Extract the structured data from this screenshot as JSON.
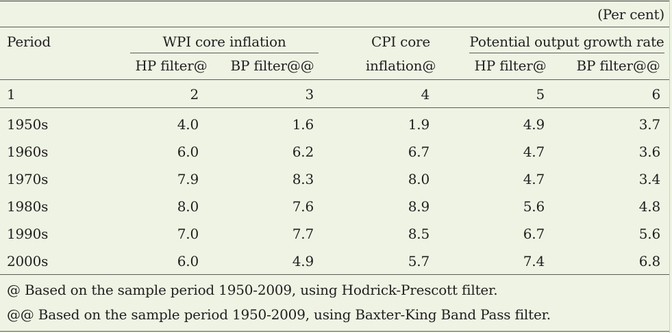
{
  "unit_note": "(Per cent)",
  "header": {
    "period": "Period",
    "wpi_group": "WPI core inflation",
    "wpi_hp": "HP filter@",
    "wpi_bp": "BP filter@@",
    "cpi_line1": "CPI core",
    "cpi_line2": "inflation@",
    "pot_group": "Potential output growth rate",
    "pot_hp": "HP filter@",
    "pot_bp": "BP filter@@"
  },
  "column_numbers": [
    "1",
    "2",
    "3",
    "4",
    "5",
    "6"
  ],
  "rows": [
    {
      "period": "1950s",
      "wpi_hp": "4.0",
      "wpi_bp": "1.6",
      "cpi": "1.9",
      "pot_hp": "4.9",
      "pot_bp": "3.7"
    },
    {
      "period": "1960s",
      "wpi_hp": "6.0",
      "wpi_bp": "6.2",
      "cpi": "6.7",
      "pot_hp": "4.7",
      "pot_bp": "3.6"
    },
    {
      "period": "1970s",
      "wpi_hp": "7.9",
      "wpi_bp": "8.3",
      "cpi": "8.0",
      "pot_hp": "4.7",
      "pot_bp": "3.4"
    },
    {
      "period": "1980s",
      "wpi_hp": "8.0",
      "wpi_bp": "7.6",
      "cpi": "8.9",
      "pot_hp": "5.6",
      "pot_bp": "4.8"
    },
    {
      "period": "1990s",
      "wpi_hp": "7.0",
      "wpi_bp": "7.7",
      "cpi": "8.5",
      "pot_hp": "6.7",
      "pot_bp": "5.6"
    },
    {
      "period": "2000s",
      "wpi_hp": "6.0",
      "wpi_bp": "4.9",
      "cpi": "5.7",
      "pot_hp": "7.4",
      "pot_bp": "6.8"
    }
  ],
  "footnotes": [
    "@ Based on the sample period 1950-2009, using Hodrick-Prescott filter.",
    "@@ Based on the sample period 1950-2009, using Baxter-King Band Pass filter."
  ]
}
